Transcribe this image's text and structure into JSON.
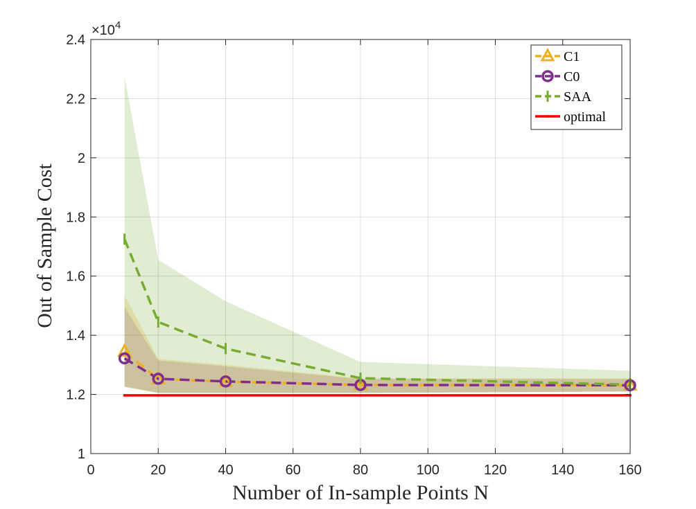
{
  "chart_data": {
    "type": "line",
    "xlabel": "Number of In-sample Points N",
    "ylabel": "Out of Sample Cost",
    "y_exponent_label": "×10",
    "y_exponent_power": "4",
    "xlim": [
      0,
      160
    ],
    "ylim": [
      1,
      2.4
    ],
    "xticks": [
      0,
      20,
      40,
      60,
      80,
      100,
      120,
      140,
      160
    ],
    "xtick_labels": [
      "0",
      "20",
      "40",
      "60",
      "80",
      "100",
      "120",
      "140",
      "160"
    ],
    "yticks": [
      1,
      1.2,
      1.4,
      1.6,
      1.8,
      2,
      2.2,
      2.4
    ],
    "ytick_labels": [
      "1",
      "1.2",
      "1.4",
      "1.6",
      "1.8",
      "2",
      "2.2",
      "2.4"
    ],
    "grid": true,
    "legend_position": "top-right",
    "x": [
      10,
      20,
      40,
      80,
      160
    ],
    "series": [
      {
        "name": "C1",
        "color": "#EDB120",
        "marker": "triangle",
        "dash": "dashed",
        "values": [
          1.345,
          1.252,
          1.243,
          1.232,
          1.231
        ],
        "band": {
          "lower": [
            1.225,
            1.205,
            1.205,
            1.205,
            1.21
          ],
          "upper": [
            1.535,
            1.32,
            1.3,
            1.255,
            1.255
          ],
          "color": "#EDB120",
          "opacity": 0.25
        }
      },
      {
        "name": "C0",
        "color": "#7E2F8E",
        "marker": "circle",
        "dash": "dashed",
        "values": [
          1.322,
          1.253,
          1.244,
          1.232,
          1.231
        ],
        "band": {
          "lower": [
            1.228,
            1.205,
            1.205,
            1.205,
            1.21
          ],
          "upper": [
            1.495,
            1.315,
            1.295,
            1.252,
            1.252
          ],
          "color": "#7E2F8E",
          "opacity": 0.18
        }
      },
      {
        "name": "SAA",
        "color": "#77AC30",
        "marker": "vline",
        "dash": "dashed",
        "values": [
          1.725,
          1.445,
          1.355,
          1.255,
          1.233
        ],
        "band": {
          "lower": [
            1.225,
            1.205,
            1.205,
            1.205,
            1.21
          ],
          "upper": [
            2.275,
            1.655,
            1.515,
            1.31,
            1.28
          ],
          "color": "#77AC30",
          "opacity": 0.22
        }
      },
      {
        "name": "optimal",
        "color": "#FF0000",
        "marker": "point",
        "dash": "solid",
        "values": [
          1.197,
          1.197,
          1.197,
          1.197,
          1.197
        ]
      }
    ]
  }
}
